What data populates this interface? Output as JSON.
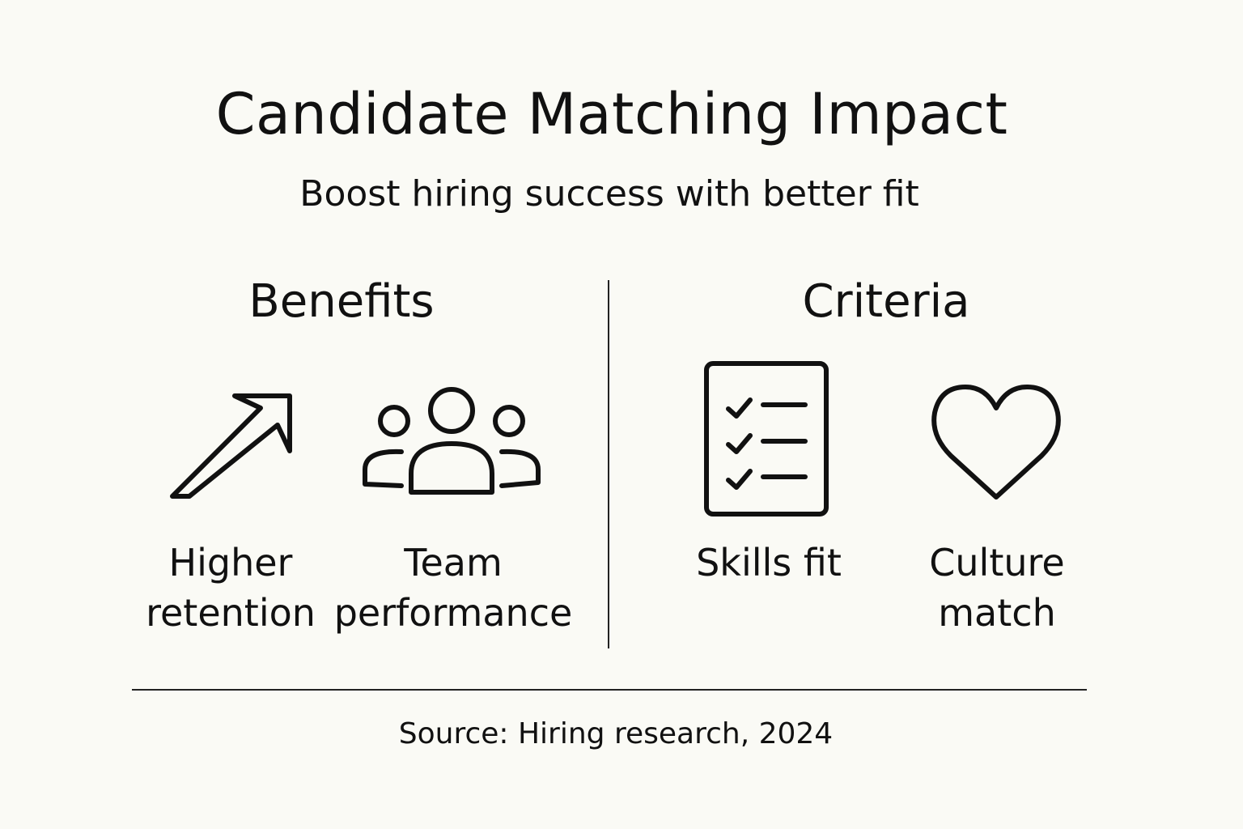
{
  "title": "Candidate Matching Impact",
  "subtitle": "Boost hiring success with better fit",
  "benefits": {
    "heading": "Benefits",
    "items": [
      {
        "label_line1": "Higher",
        "label_line2": "retention",
        "icon": "arrow-up-right-icon"
      },
      {
        "label_line1": "Team",
        "label_line2": "performance",
        "icon": "people-group-icon"
      }
    ]
  },
  "criteria": {
    "heading": "Criteria",
    "items": [
      {
        "label_line1": "Skills fit",
        "label_line2": "",
        "icon": "checklist-icon"
      },
      {
        "label_line1": "Culture",
        "label_line2": "match",
        "icon": "heart-icon"
      }
    ]
  },
  "source": "Source: Hiring research, 2024"
}
